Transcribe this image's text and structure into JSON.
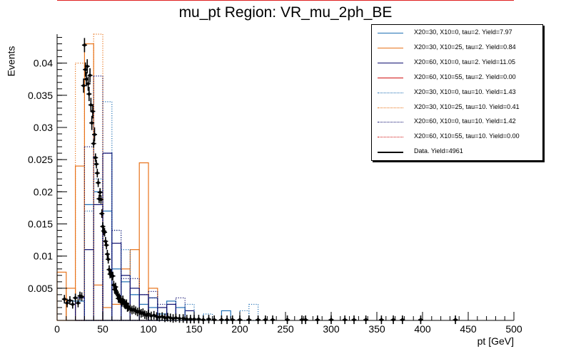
{
  "chart_data": {
    "type": "histogram",
    "title": "mu_pt Region: VR_mu_2ph_BE",
    "xlabel": "pt [GeV]",
    "ylabel": "Events",
    "xlim": [
      0,
      500
    ],
    "ylim": [
      0,
      0.0445
    ],
    "x_ticks": [
      0,
      50,
      100,
      150,
      200,
      250,
      300,
      350,
      400,
      450,
      500
    ],
    "y_ticks": [
      0.005,
      0.01,
      0.015,
      0.02,
      0.025,
      0.03,
      0.035,
      0.04
    ],
    "y_tick_labels": [
      "0.005",
      "0.01",
      "0.015",
      "0.02",
      "0.025",
      "0.03",
      "0.035",
      "0.04"
    ],
    "grid": false,
    "legend_position": "top-right",
    "bin_width": 10,
    "series": [
      {
        "name": "X20=30, X10=0, tau=2. Yield=7.97",
        "color": "#1f6fb4",
        "style": "solid",
        "bins": [
          [
            10,
            0.003
          ],
          [
            20,
            0.003
          ],
          [
            30,
            0.018
          ],
          [
            40,
            0.02
          ],
          [
            50,
            0.017
          ],
          [
            60,
            0.008
          ],
          [
            70,
            0.006
          ],
          [
            80,
            0.004
          ],
          [
            90,
            0.0025
          ],
          [
            100,
            0.002
          ],
          [
            110,
            0.001
          ],
          [
            120,
            0.003
          ],
          [
            130,
            0.002
          ],
          [
            180,
            0.0015
          ]
        ]
      },
      {
        "name": "X20=30, X10=25, tau=2. Yield=0.84",
        "color": "#e8731a",
        "style": "solid",
        "bins": [
          [
            0,
            0.0075
          ],
          [
            10,
            0.005
          ],
          [
            20,
            0.024
          ],
          [
            30,
            0.043
          ],
          [
            40,
            0.0055
          ],
          [
            50,
            0.002
          ],
          [
            60,
            0.0025
          ],
          [
            70,
            0.008
          ],
          [
            80,
            0.011
          ],
          [
            90,
            0.0245
          ],
          [
            100,
            0.005
          ]
        ]
      },
      {
        "name": "X20=60, X10=0, tau=2. Yield=11.05",
        "color": "#101070",
        "style": "solid",
        "bins": [
          [
            20,
            0.0035
          ],
          [
            30,
            0.011
          ],
          [
            40,
            0.018
          ],
          [
            50,
            0.026
          ],
          [
            60,
            0.012
          ],
          [
            70,
            0.007
          ],
          [
            80,
            0.005
          ],
          [
            90,
            0.004
          ],
          [
            100,
            0.0035
          ],
          [
            110,
            0.002
          ],
          [
            120,
            0.0025
          ],
          [
            140,
            0.0015
          ]
        ]
      },
      {
        "name": "X20=60, X10=55, tau=2. Yield=0.00",
        "color": "#d01010",
        "style": "solid",
        "bins": []
      },
      {
        "name": "X20=30, X10=0, tau=10. Yield=1.43",
        "color": "#1f6fb4",
        "style": "dotted",
        "bins": [
          [
            30,
            0.017
          ],
          [
            40,
            0.022
          ],
          [
            50,
            0.034
          ],
          [
            60,
            0.014
          ],
          [
            70,
            0.011
          ],
          [
            80,
            0.004
          ],
          [
            100,
            0.0035
          ],
          [
            140,
            0.0025
          ],
          [
            160,
            0.001
          ],
          [
            200,
            0.0015
          ],
          [
            210,
            0.0025
          ]
        ]
      },
      {
        "name": "X20=30, X10=25, tau=10. Yield=0.41",
        "color": "#e8731a",
        "style": "dotted",
        "bins": [
          [
            20,
            0.04
          ],
          [
            40,
            0.045
          ]
        ]
      },
      {
        "name": "X20=60, X10=0, tau=10. Yield=1.42",
        "color": "#101070",
        "style": "dotted",
        "bins": [
          [
            20,
            0.0035
          ],
          [
            30,
            0.027
          ],
          [
            40,
            0.038
          ],
          [
            50,
            0.026
          ],
          [
            60,
            0.014
          ],
          [
            70,
            0.0065
          ],
          [
            80,
            0.0065
          ],
          [
            90,
            0.004
          ],
          [
            100,
            0.0045
          ],
          [
            110,
            0.0025
          ],
          [
            130,
            0.0035
          ]
        ]
      },
      {
        "name": "X20=60, X10=55, tau=10. Yield=0.00",
        "color": "#d01010",
        "style": "dotted",
        "bins": []
      },
      {
        "name": "Data. Yield=4961",
        "color": "#000000",
        "style": "points",
        "points": [
          [
            8,
            0.0033
          ],
          [
            11,
            0.0027
          ],
          [
            14,
            0.0031
          ],
          [
            17,
            0.0025
          ],
          [
            20,
            0.0035
          ],
          [
            23,
            0.0027
          ],
          [
            25,
            0.0038
          ],
          [
            27,
            0.0037
          ],
          [
            29,
            0.0365
          ],
          [
            30,
            0.0428
          ],
          [
            31,
            0.039
          ],
          [
            32,
            0.0375
          ],
          [
            33,
            0.0395
          ],
          [
            34,
            0.0368
          ],
          [
            35,
            0.0352
          ],
          [
            36,
            0.0381
          ],
          [
            37,
            0.0335
          ],
          [
            38,
            0.0307
          ],
          [
            39,
            0.0325
          ],
          [
            40,
            0.0275
          ],
          [
            41,
            0.0289
          ],
          [
            42,
            0.0253
          ],
          [
            43,
            0.0243
          ],
          [
            44,
            0.0229
          ],
          [
            45,
            0.0214
          ],
          [
            46,
            0.0189
          ],
          [
            47,
            0.0199
          ],
          [
            48,
            0.0188
          ],
          [
            49,
            0.0166
          ],
          [
            50,
            0.0146
          ],
          [
            51,
            0.0139
          ],
          [
            52,
            0.0137
          ],
          [
            53,
            0.0123
          ],
          [
            54,
            0.0117
          ],
          [
            55,
            0.0103
          ],
          [
            56,
            0.0095
          ],
          [
            57,
            0.0079
          ],
          [
            58,
            0.0072
          ],
          [
            59,
            0.0073
          ],
          [
            60,
            0.0069
          ],
          [
            61,
            0.0069
          ],
          [
            62,
            0.0055
          ],
          [
            63,
            0.0048
          ],
          [
            64,
            0.0052
          ],
          [
            65,
            0.0044
          ],
          [
            66,
            0.0041
          ],
          [
            67,
            0.0034
          ],
          [
            68,
            0.0034
          ],
          [
            69,
            0.0033
          ],
          [
            70,
            0.0031
          ],
          [
            71,
            0.0028
          ],
          [
            72,
            0.0032
          ],
          [
            73,
            0.0027
          ],
          [
            74,
            0.0025
          ],
          [
            75,
            0.0024
          ],
          [
            76,
            0.0026
          ],
          [
            77,
            0.002
          ],
          [
            78,
            0.0021
          ],
          [
            80,
            0.0018
          ],
          [
            82,
            0.0016
          ],
          [
            84,
            0.0017
          ],
          [
            86,
            0.0015
          ],
          [
            88,
            0.0013
          ],
          [
            90,
            0.0014
          ],
          [
            92,
            0.0011
          ],
          [
            94,
            0.0012
          ],
          [
            96,
            0.0009
          ],
          [
            98,
            0.0008
          ],
          [
            100,
            0.001
          ],
          [
            103,
            0.0007
          ],
          [
            106,
            0.0008
          ],
          [
            109,
            0.0006
          ],
          [
            112,
            0.0005
          ],
          [
            115,
            0.0006
          ],
          [
            118,
            0.0004
          ],
          [
            121,
            0.0005
          ],
          [
            124,
            0.0004
          ],
          [
            127,
            0.0003
          ],
          [
            130,
            0.0004
          ],
          [
            134,
            0.0003
          ],
          [
            138,
            0.0003
          ],
          [
            142,
            0.0002
          ],
          [
            146,
            0.0002
          ],
          [
            150,
            0.0002
          ],
          [
            155,
            0.0002
          ],
          [
            160,
            0.0001
          ],
          [
            166,
            0.0002
          ],
          [
            172,
            0.0001
          ],
          [
            180,
            0.0001
          ],
          [
            186,
            0.0001
          ],
          [
            192,
            0.0001
          ],
          [
            200,
            0.0001
          ],
          [
            210,
            0.0001
          ],
          [
            220,
            0.0001
          ],
          [
            228,
            0.0001
          ],
          [
            236,
            0.0001
          ],
          [
            252,
            0.0001
          ],
          [
            268,
            0.0001
          ],
          [
            272,
            0.0001
          ],
          [
            285,
            0.0001
          ],
          [
            300,
            0.0001
          ],
          [
            315,
            0.0001
          ],
          [
            325,
            0.0001
          ],
          [
            338,
            0.0001
          ],
          [
            355,
            0.0001
          ],
          [
            368,
            0.0001
          ],
          [
            378,
            0.0001
          ],
          [
            398,
            0.0001
          ],
          [
            436,
            0.0001
          ]
        ]
      }
    ]
  }
}
